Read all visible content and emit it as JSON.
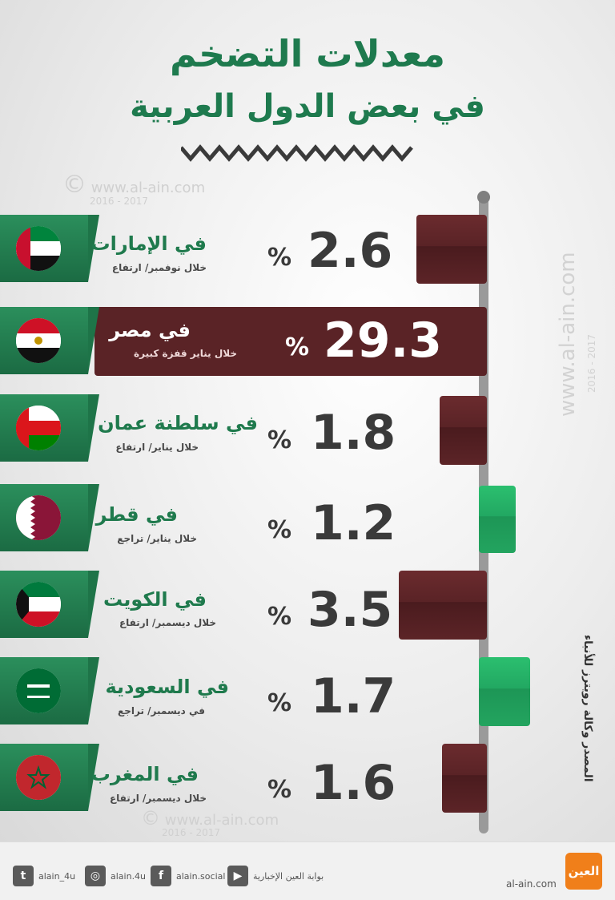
{
  "title": {
    "line1": "معدلات التضخم",
    "line2": "في بعض الدول العربية"
  },
  "watermark": {
    "site": "www.al-ain.com",
    "years": "2016 - 2017",
    "copyright": "©"
  },
  "source": "المصدر وكالة رويترز للأنباء",
  "percent_sign": "%",
  "colors": {
    "increase": "#5a2326",
    "decrease": "#22a862",
    "title": "#1e7a4e",
    "tab": "#1b6b43"
  },
  "countries": [
    {
      "name": "في الإمارات",
      "detail": "خلال نوفمبر/ ارتفاع",
      "value": "2.6",
      "trend": "increase",
      "flag": "uae-flag"
    },
    {
      "name": "في مصر",
      "detail": "خلال يناير قفزة كبيرة",
      "value": "29.3",
      "trend": "increase",
      "flag": "egypt-flag"
    },
    {
      "name": "في سلطنة عمان",
      "detail": "خلال يناير/ ارتفاع",
      "value": "1.8",
      "trend": "increase",
      "flag": "oman-flag"
    },
    {
      "name": "في قطر",
      "detail": "خلال يناير/ تراجع",
      "value": "1.2",
      "trend": "decrease",
      "flag": "qatar-flag"
    },
    {
      "name": "في الكويت",
      "detail": "خلال ديسمبر/ ارتفاع",
      "value": "3.5",
      "trend": "increase",
      "flag": "kuwait-flag"
    },
    {
      "name": "في السعودية",
      "detail": "في ديسمبر/ تراجع",
      "value": "1.7",
      "trend": "decrease",
      "flag": "saudi-flag"
    },
    {
      "name": "في المغرب",
      "detail": "خلال ديسمبر/ ارتفاع",
      "value": "1.6",
      "trend": "increase",
      "flag": "morocco-flag"
    }
  ],
  "footer": {
    "twitter": "alain_4u",
    "instagram": "alain.4u",
    "facebook": "alain.social",
    "youtube": "بوابة العين الإخبارية",
    "site": "al-ain.com",
    "logo": "العين"
  }
}
